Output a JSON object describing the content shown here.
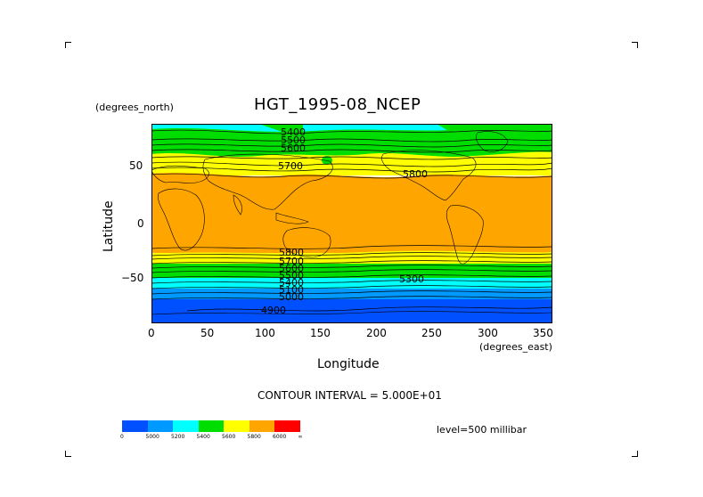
{
  "title": "HGT_1995-08_NCEP",
  "yunit": "(degrees_north)",
  "xunit": "(degrees_east)",
  "xlabel": "Longitude",
  "ylabel": "Latitude",
  "xticks": [
    "0",
    "50",
    "100",
    "150",
    "200",
    "250",
    "300",
    "350"
  ],
  "yticks": [
    "50",
    "0",
    "−50"
  ],
  "contour_interval": "CONTOUR INTERVAL = 5.000E+01",
  "level": "level=500 millibar",
  "contour_labels": [
    "5400",
    "5500",
    "5600",
    "5700",
    "5800",
    "5800",
    "5700",
    "5600",
    "5500",
    "5400",
    "5300",
    "5100",
    "5000",
    "4900"
  ],
  "colorbar": {
    "colors": [
      "#0050ff",
      "#0099ff",
      "#00ffff",
      "#00dd00",
      "#ffff00",
      "#ffa500",
      "#ff0000"
    ],
    "labels": [
      "0",
      "5000",
      "5200",
      "5400",
      "5600",
      "5800",
      "6000",
      "∞"
    ]
  },
  "chart_data": {
    "type": "heatmap",
    "title": "HGT_1995-08_NCEP",
    "xlabel": "Longitude",
    "ylabel": "Latitude",
    "xlim": [
      0,
      360
    ],
    "ylim": [
      -90,
      90
    ],
    "level": "500 millibar",
    "contour_interval": 50,
    "bands": [
      {
        "from_lat": 90,
        "to_lat": 72,
        "range": "5200-5400",
        "color": "#00ffff"
      },
      {
        "from_lat": 72,
        "to_lat": 62,
        "range": "5400-5600",
        "color": "#00dd00"
      },
      {
        "from_lat": 62,
        "to_lat": 45,
        "range": "5600-5800",
        "color": "#ffff00"
      },
      {
        "from_lat": 45,
        "to_lat": -33,
        "range": "5800-6000",
        "color": "#ffa500"
      },
      {
        "from_lat": -33,
        "to_lat": -45,
        "range": "5600-5800",
        "color": "#ffff00"
      },
      {
        "from_lat": -45,
        "to_lat": -55,
        "range": "5400-5600",
        "color": "#00dd00"
      },
      {
        "from_lat": -55,
        "to_lat": -65,
        "range": "5200-5400",
        "color": "#00ffff"
      },
      {
        "from_lat": -65,
        "to_lat": -72,
        "range": "5000-5200",
        "color": "#0099ff"
      },
      {
        "from_lat": -72,
        "to_lat": -90,
        "range": "<5000",
        "color": "#0050ff"
      }
    ]
  }
}
